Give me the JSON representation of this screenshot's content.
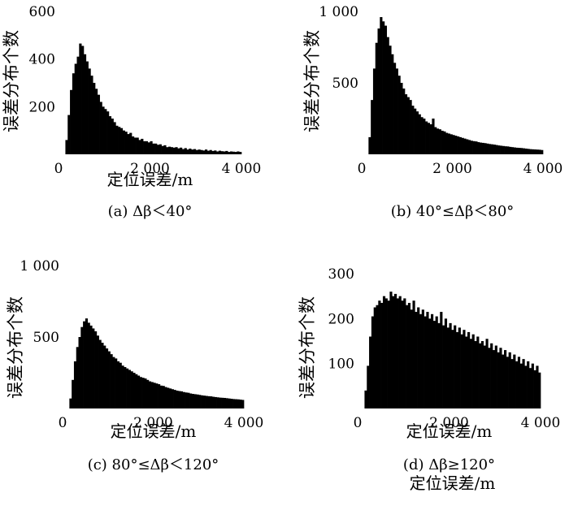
{
  "chart_data": [
    {
      "type": "bar",
      "caption": "(a) Δβ＜40°",
      "xlabel": "定位误差/m",
      "ylabel": "误差分布个数",
      "xlim": [
        0,
        4000
      ],
      "ylim": [
        0,
        600
      ],
      "xticks": [
        0,
        2000,
        4000
      ],
      "xtick_labels": [
        "0",
        "2 000",
        "4 000"
      ],
      "yticks": [
        200,
        400,
        600
      ],
      "ytick_labels": [
        "200",
        "400",
        "600"
      ],
      "bin_width": 50,
      "bins_start": [
        150,
        200,
        250,
        300,
        350,
        400,
        450,
        500,
        550,
        600,
        650,
        700,
        750,
        800,
        850,
        900,
        950,
        1000,
        1050,
        1100,
        1150,
        1200,
        1250,
        1300,
        1350,
        1400,
        1450,
        1500,
        1550,
        1600,
        1650,
        1700,
        1750,
        1800,
        1850,
        1900,
        1950,
        2000,
        2050,
        2100,
        2150,
        2200,
        2250,
        2300,
        2350,
        2400,
        2450,
        2500,
        2550,
        2600,
        2650,
        2700,
        2750,
        2800,
        2850,
        2900,
        2950,
        3000,
        3050,
        3100,
        3150,
        3200,
        3250,
        3300,
        3350,
        3400,
        3450,
        3500,
        3550,
        3600,
        3650,
        3700,
        3750,
        3800,
        3850,
        3900,
        3950
      ],
      "values": [
        60,
        165,
        270,
        340,
        380,
        410,
        465,
        455,
        420,
        390,
        360,
        330,
        300,
        275,
        250,
        220,
        200,
        190,
        180,
        160,
        150,
        135,
        120,
        115,
        110,
        100,
        95,
        85,
        90,
        75,
        70,
        70,
        60,
        65,
        55,
        55,
        50,
        55,
        45,
        45,
        40,
        42,
        35,
        38,
        30,
        32,
        30,
        28,
        30,
        25,
        28,
        22,
        26,
        20,
        24,
        20,
        22,
        18,
        20,
        18,
        16,
        20,
        15,
        18,
        14,
        16,
        12,
        15,
        13,
        12,
        14,
        10,
        12,
        11,
        10,
        12,
        10
      ]
    },
    {
      "type": "bar",
      "caption": "(b) 40°≤Δβ＜80°",
      "xlabel": "定位误差/m",
      "ylabel": "误差分布个数",
      "xlim": [
        0,
        4000
      ],
      "ylim": [
        0,
        1000
      ],
      "xticks": [
        0,
        2000,
        4000
      ],
      "xtick_labels": [
        "0",
        "2 000",
        "4 000"
      ],
      "yticks": [
        500,
        1000
      ],
      "ytick_labels": [
        "500",
        "1 000"
      ],
      "bin_width": 50,
      "bins_start": [
        150,
        200,
        250,
        300,
        350,
        400,
        450,
        500,
        550,
        600,
        650,
        700,
        750,
        800,
        850,
        900,
        950,
        1000,
        1050,
        1100,
        1150,
        1200,
        1250,
        1300,
        1350,
        1400,
        1450,
        1500,
        1550,
        1600,
        1650,
        1700,
        1750,
        1800,
        1850,
        1900,
        1950,
        2000,
        2050,
        2100,
        2150,
        2200,
        2250,
        2300,
        2350,
        2400,
        2450,
        2500,
        2550,
        2600,
        2650,
        2700,
        2750,
        2800,
        2850,
        2900,
        2950,
        3000,
        3050,
        3100,
        3150,
        3200,
        3250,
        3300,
        3350,
        3400,
        3450,
        3500,
        3550,
        3600,
        3650,
        3700,
        3750,
        3800,
        3850,
        3900,
        3950
      ],
      "values": [
        120,
        380,
        600,
        780,
        880,
        960,
        930,
        900,
        820,
        760,
        700,
        640,
        600,
        550,
        500,
        460,
        420,
        400,
        380,
        340,
        320,
        300,
        280,
        260,
        250,
        230,
        220,
        210,
        250,
        190,
        180,
        175,
        165,
        160,
        150,
        145,
        140,
        135,
        130,
        125,
        120,
        115,
        110,
        105,
        100,
        95,
        92,
        90,
        85,
        82,
        80,
        78,
        75,
        72,
        70,
        68,
        65,
        62,
        60,
        58,
        56,
        55,
        52,
        50,
        48,
        46,
        45,
        44,
        42,
        40,
        38,
        36,
        35,
        34,
        33,
        32,
        30
      ]
    },
    {
      "type": "bar",
      "caption": "(c) 80°≤Δβ＜120°",
      "xlabel": "定位误差/m",
      "ylabel": "误差分布个数",
      "xlim": [
        0,
        4000
      ],
      "ylim": [
        0,
        1000
      ],
      "xticks": [
        0,
        2000,
        4000
      ],
      "xtick_labels": [
        "0",
        "2 000",
        "4 000"
      ],
      "yticks": [
        500,
        1000
      ],
      "ytick_labels": [
        "500",
        "1 000"
      ],
      "bin_width": 50,
      "bins_start": [
        150,
        200,
        250,
        300,
        350,
        400,
        450,
        500,
        550,
        600,
        650,
        700,
        750,
        800,
        850,
        900,
        950,
        1000,
        1050,
        1100,
        1150,
        1200,
        1250,
        1300,
        1350,
        1400,
        1450,
        1500,
        1550,
        1600,
        1650,
        1700,
        1750,
        1800,
        1850,
        1900,
        1950,
        2000,
        2050,
        2100,
        2150,
        2200,
        2250,
        2300,
        2350,
        2400,
        2450,
        2500,
        2550,
        2600,
        2650,
        2700,
        2750,
        2800,
        2850,
        2900,
        2950,
        3000,
        3050,
        3100,
        3150,
        3200,
        3250,
        3300,
        3350,
        3400,
        3450,
        3500,
        3550,
        3600,
        3650,
        3700,
        3750,
        3800,
        3850,
        3900,
        3950
      ],
      "values": [
        70,
        200,
        330,
        430,
        500,
        570,
        610,
        630,
        600,
        580,
        560,
        540,
        510,
        480,
        460,
        440,
        420,
        400,
        380,
        360,
        350,
        330,
        320,
        300,
        290,
        280,
        270,
        260,
        250,
        240,
        230,
        220,
        215,
        210,
        200,
        190,
        185,
        180,
        175,
        170,
        160,
        158,
        150,
        145,
        140,
        135,
        130,
        125,
        122,
        120,
        115,
        112,
        110,
        105,
        102,
        100,
        98,
        95,
        92,
        90,
        88,
        86,
        85,
        82,
        80,
        78,
        76,
        75,
        74,
        72,
        70,
        68,
        66,
        65,
        64,
        62,
        60
      ]
    },
    {
      "type": "bar",
      "caption": "(d) Δβ≥120°",
      "xlabel": "定位误差/m",
      "ylabel": "误差分布个数",
      "xlim": [
        0,
        4000
      ],
      "ylim": [
        0,
        300
      ],
      "xticks": [
        0,
        2000,
        4000
      ],
      "xtick_labels": [
        "0",
        "2 000",
        "4 000"
      ],
      "yticks": [
        100,
        200,
        300
      ],
      "ytick_labels": [
        "100",
        "200",
        "300"
      ],
      "bin_width": 50,
      "bins_start": [
        150,
        200,
        250,
        300,
        350,
        400,
        450,
        500,
        550,
        600,
        650,
        700,
        750,
        800,
        850,
        900,
        950,
        1000,
        1050,
        1100,
        1150,
        1200,
        1250,
        1300,
        1350,
        1400,
        1450,
        1500,
        1550,
        1600,
        1650,
        1700,
        1750,
        1800,
        1850,
        1900,
        1950,
        2000,
        2050,
        2100,
        2150,
        2200,
        2250,
        2300,
        2350,
        2400,
        2450,
        2500,
        2550,
        2600,
        2650,
        2700,
        2750,
        2800,
        2850,
        2900,
        2950,
        3000,
        3050,
        3100,
        3150,
        3200,
        3250,
        3300,
        3350,
        3400,
        3450,
        3500,
        3550,
        3600,
        3650,
        3700,
        3750,
        3800,
        3850,
        3900,
        3950
      ],
      "values": [
        40,
        95,
        160,
        205,
        225,
        230,
        240,
        235,
        250,
        245,
        240,
        260,
        250,
        255,
        245,
        250,
        240,
        245,
        230,
        235,
        220,
        240,
        215,
        225,
        210,
        220,
        205,
        215,
        200,
        210,
        195,
        205,
        190,
        215,
        185,
        200,
        180,
        190,
        175,
        185,
        170,
        180,
        165,
        175,
        160,
        170,
        155,
        165,
        150,
        160,
        145,
        150,
        140,
        155,
        135,
        145,
        130,
        140,
        125,
        135,
        120,
        130,
        115,
        125,
        110,
        120,
        105,
        115,
        100,
        110,
        95,
        105,
        90,
        100,
        85,
        95,
        80
      ]
    }
  ]
}
